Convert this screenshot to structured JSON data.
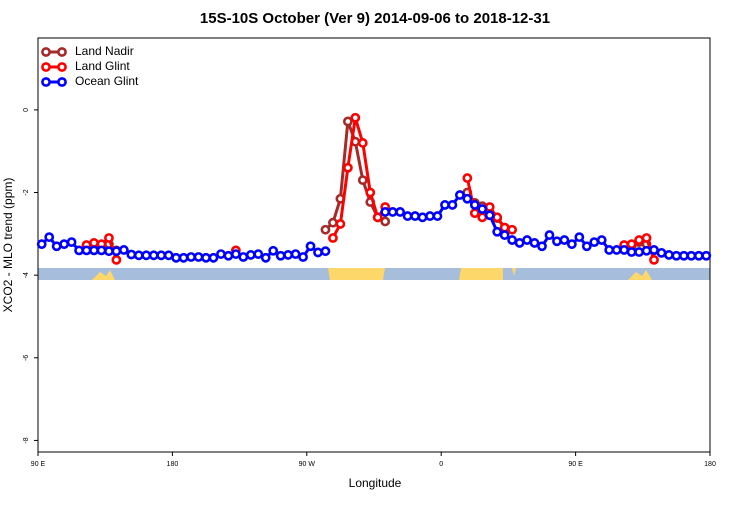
{
  "chart_data": {
    "type": "line",
    "title": "15S-10S October (Ver 9)   2014-09-06 to 2018-12-31",
    "x_label": "Longitude",
    "y_label": "XCO2 - MLO trend (ppm)",
    "x": [
      92.5,
      97.5,
      102.5,
      107.5,
      112.5,
      117.5,
      122.5,
      127.5,
      132.5,
      137.5,
      142.5,
      147.5,
      152.5,
      157.5,
      162.5,
      167.5,
      172.5,
      177.5,
      182.5,
      187.5,
      192.5,
      197.5,
      202.5,
      207.5,
      212.5,
      217.5,
      222.5,
      227.5,
      232.5,
      237.5,
      242.5,
      247.5,
      252.5,
      257.5,
      262.5,
      267.5,
      272.5,
      277.5,
      282.5,
      287.5,
      292.5,
      297.5,
      302.5,
      307.5,
      312.5,
      317.5,
      322.5,
      327.5,
      332.5,
      337.5,
      342.5,
      347.5,
      352.5,
      357.5,
      362.5,
      367.5,
      372.5,
      377.5,
      382.5,
      387.5,
      392.5,
      397.5,
      402.5,
      407.5,
      412.5,
      417.5,
      422.5,
      427.5,
      432.5,
      437.5,
      442.5,
      447.5,
      452.5,
      457.5,
      462.5,
      467.5,
      472.5,
      477.5,
      482.5,
      487.5,
      492.5,
      497.5,
      502.5,
      507.5,
      512.5,
      517.5,
      522.5,
      527.5,
      532.5,
      537.5
    ],
    "xlim": [
      90,
      540
    ],
    "xticks": [
      {
        "value": 90,
        "label": "90 E"
      },
      {
        "value": 180,
        "label": "180"
      },
      {
        "value": 270,
        "label": "90 W"
      },
      {
        "value": 360,
        "label": "0"
      },
      {
        "value": 450,
        "label": "90 E"
      },
      {
        "value": 540,
        "label": "180"
      }
    ],
    "ylim": [
      -8.28,
      1.74
    ],
    "yticks": [
      0,
      -2,
      -4,
      -6,
      -8
    ],
    "legend": "top-left",
    "series": [
      {
        "name": "Land Nadir",
        "color": "#a52a2a",
        "values": [
          null,
          null,
          null,
          null,
          null,
          null,
          -3.3,
          -3.28,
          -3.3,
          -3.25,
          -3.4,
          null,
          null,
          null,
          null,
          null,
          null,
          null,
          null,
          null,
          null,
          null,
          null,
          null,
          null,
          null,
          null,
          null,
          null,
          null,
          null,
          null,
          null,
          null,
          null,
          null,
          null,
          null,
          -2.9,
          -2.73,
          -2.15,
          -0.28,
          -0.77,
          -1.7,
          -2.23,
          -2.6,
          -2.7,
          null,
          null,
          null,
          null,
          null,
          null,
          null,
          null,
          null,
          null,
          -2.0,
          -2.25,
          -2.33,
          -2.5,
          -2.62,
          -2.85,
          null,
          null,
          null,
          null,
          null,
          null,
          null,
          null,
          null,
          null,
          null,
          null,
          null,
          null,
          null,
          -3.3,
          -3.3,
          -3.2,
          -3.25,
          -3.4,
          null,
          null,
          null,
          null,
          null,
          null,
          null
        ]
      },
      {
        "name": "Land Glint",
        "color": "#ff0000",
        "values": [
          null,
          null,
          null,
          null,
          null,
          null,
          -3.27,
          -3.22,
          -3.25,
          -3.1,
          -3.63,
          null,
          null,
          null,
          null,
          null,
          null,
          null,
          null,
          null,
          null,
          null,
          null,
          null,
          null,
          null,
          -3.4,
          null,
          null,
          null,
          null,
          null,
          null,
          null,
          null,
          null,
          null,
          null,
          null,
          -3.1,
          -2.76,
          -1.4,
          -0.19,
          -0.8,
          -2.0,
          -2.6,
          -2.35,
          null,
          null,
          null,
          null,
          null,
          null,
          null,
          null,
          null,
          null,
          -1.65,
          -2.5,
          -2.6,
          -2.35,
          -2.6,
          -2.85,
          -2.9,
          null,
          null,
          null,
          null,
          null,
          null,
          null,
          null,
          null,
          null,
          null,
          null,
          null,
          null,
          -3.27,
          -3.25,
          -3.15,
          -3.1,
          -3.63,
          null,
          null,
          null,
          null,
          null,
          null,
          null
        ]
      },
      {
        "name": "Ocean Glint",
        "color": "#0000ff",
        "values": [
          -3.25,
          -3.08,
          -3.3,
          -3.25,
          -3.2,
          -3.4,
          -3.4,
          -3.4,
          -3.4,
          -3.42,
          -3.42,
          -3.39,
          -3.5,
          -3.52,
          -3.52,
          -3.52,
          -3.52,
          -3.52,
          -3.58,
          -3.58,
          -3.56,
          -3.56,
          -3.58,
          -3.58,
          -3.49,
          -3.53,
          -3.49,
          -3.56,
          -3.51,
          -3.49,
          -3.58,
          -3.41,
          -3.53,
          -3.51,
          -3.49,
          -3.56,
          -3.3,
          -3.45,
          -3.42,
          null,
          null,
          null,
          null,
          null,
          null,
          null,
          -2.47,
          -2.47,
          -2.47,
          -2.57,
          -2.57,
          -2.6,
          -2.57,
          -2.57,
          -2.3,
          -2.3,
          -2.06,
          -2.15,
          -2.3,
          -2.4,
          -2.55,
          -2.95,
          -3.03,
          -3.15,
          -3.22,
          -3.15,
          -3.22,
          -3.3,
          -3.03,
          -3.18,
          -3.15,
          -3.25,
          -3.08,
          -3.3,
          -3.2,
          -3.15,
          -3.39,
          -3.39,
          -3.39,
          -3.44,
          -3.44,
          -3.41,
          -3.39,
          -3.46,
          -3.51,
          -3.53,
          -3.53,
          -3.53,
          -3.53,
          -3.53
        ]
      }
    ]
  }
}
